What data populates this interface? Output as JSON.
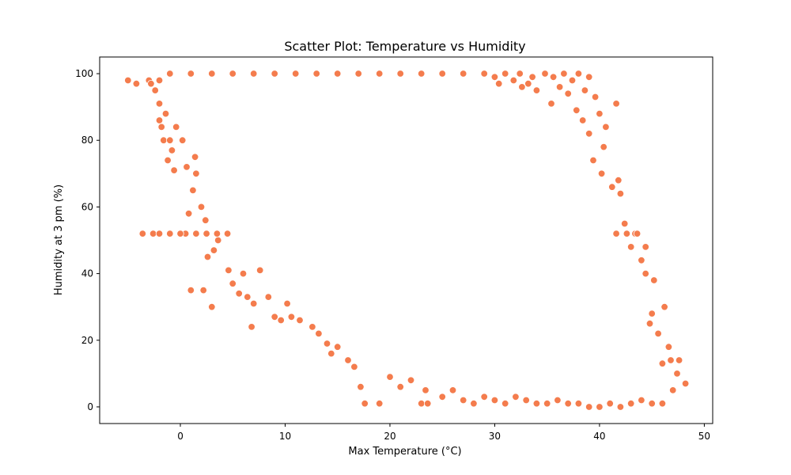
{
  "chart_data": {
    "type": "scatter",
    "title": "Scatter Plot: Temperature vs Humidity",
    "xlabel": "Max Temperature (°C)",
    "ylabel": "Humidity at 3 pm (%)",
    "xlim": [
      -7.7,
      50.8
    ],
    "ylim": [
      -5,
      105
    ],
    "xticks": [
      0,
      10,
      20,
      30,
      40,
      50
    ],
    "yticks": [
      0,
      20,
      40,
      60,
      80,
      100
    ],
    "xtick_labels": [
      "0",
      "10",
      "20",
      "30",
      "40",
      "50"
    ],
    "ytick_labels": [
      "0",
      "20",
      "40",
      "60",
      "80",
      "100"
    ],
    "grid": false,
    "legend": "none",
    "colors": {
      "marker": "#F47C4D",
      "marker_edge": "#ffffff"
    },
    "series": [
      {
        "points": [
          [
            -5.0,
            98
          ],
          [
            -4.2,
            97
          ],
          [
            -3.6,
            52
          ],
          [
            -3.0,
            98
          ],
          [
            -2.8,
            97
          ],
          [
            -2.4,
            95
          ],
          [
            -2.0,
            91
          ],
          [
            -2.0,
            86
          ],
          [
            -1.8,
            84
          ],
          [
            -1.6,
            80
          ],
          [
            -1.4,
            88
          ],
          [
            -1.2,
            74
          ],
          [
            -1.0,
            80
          ],
          [
            -0.8,
            77
          ],
          [
            -0.6,
            71
          ],
          [
            -0.4,
            84
          ],
          [
            0.2,
            80
          ],
          [
            0.6,
            72
          ],
          [
            0.8,
            58
          ],
          [
            1.0,
            35
          ],
          [
            1.2,
            65
          ],
          [
            1.4,
            75
          ],
          [
            1.5,
            70
          ],
          [
            2.0,
            60
          ],
          [
            2.2,
            35
          ],
          [
            2.4,
            56
          ],
          [
            2.6,
            45
          ],
          [
            3.0,
            30
          ],
          [
            3.2,
            47
          ],
          [
            3.6,
            50
          ],
          [
            4.6,
            41
          ],
          [
            5.0,
            37
          ],
          [
            5.6,
            34
          ],
          [
            6.0,
            40
          ],
          [
            6.4,
            33
          ],
          [
            6.8,
            24
          ],
          [
            7.0,
            31
          ],
          [
            7.6,
            41
          ],
          [
            8.4,
            33
          ],
          [
            9.0,
            27
          ],
          [
            9.6,
            26
          ],
          [
            10.2,
            31
          ],
          [
            10.6,
            27
          ],
          [
            11.4,
            26
          ],
          [
            12.6,
            24
          ],
          [
            13.2,
            22
          ],
          [
            14.0,
            19
          ],
          [
            14.4,
            16
          ],
          [
            15.0,
            18
          ],
          [
            16.0,
            14
          ],
          [
            16.6,
            12
          ],
          [
            17.2,
            6
          ],
          [
            17.6,
            1
          ],
          [
            19.0,
            1
          ],
          [
            20.0,
            9
          ],
          [
            21.0,
            6
          ],
          [
            22.0,
            8
          ],
          [
            23.0,
            1
          ],
          [
            23.4,
            5
          ],
          [
            23.6,
            1
          ],
          [
            25.0,
            3
          ],
          [
            26.0,
            5
          ],
          [
            27.0,
            2
          ],
          [
            28.0,
            1
          ],
          [
            29.0,
            3
          ],
          [
            30.0,
            2
          ],
          [
            31.0,
            1
          ],
          [
            32.0,
            3
          ],
          [
            33.0,
            2
          ],
          [
            34.0,
            1
          ],
          [
            35.0,
            1
          ],
          [
            36.0,
            2
          ],
          [
            37.0,
            1
          ],
          [
            38.0,
            1
          ],
          [
            39.0,
            0
          ],
          [
            40.0,
            0
          ],
          [
            41.0,
            1
          ],
          [
            42.0,
            0
          ],
          [
            43.0,
            1
          ],
          [
            44.0,
            2
          ],
          [
            45.0,
            1
          ],
          [
            46.0,
            1
          ],
          [
            47.0,
            5
          ],
          [
            48.2,
            7
          ],
          [
            47.4,
            10
          ],
          [
            46.8,
            14
          ],
          [
            46.6,
            18
          ],
          [
            46.2,
            30
          ],
          [
            45.2,
            38
          ],
          [
            44.4,
            40
          ],
          [
            44.4,
            48
          ],
          [
            43.4,
            52
          ],
          [
            42.4,
            55
          ],
          [
            42.0,
            64
          ],
          [
            41.8,
            68
          ],
          [
            41.2,
            66
          ],
          [
            41.6,
            91
          ],
          [
            40.6,
            84
          ],
          [
            40.0,
            88
          ],
          [
            39.6,
            93
          ],
          [
            39.0,
            99
          ],
          [
            38.6,
            95
          ],
          [
            38.0,
            100
          ],
          [
            37.4,
            98
          ],
          [
            36.6,
            100
          ],
          [
            35.6,
            99
          ],
          [
            34.8,
            100
          ],
          [
            33.6,
            99
          ],
          [
            32.4,
            100
          ],
          [
            31.0,
            100
          ],
          [
            30.0,
            99
          ],
          [
            29.0,
            100
          ],
          [
            27.0,
            100
          ],
          [
            25.0,
            100
          ],
          [
            23.0,
            100
          ],
          [
            21.0,
            100
          ],
          [
            19.0,
            100
          ],
          [
            17.0,
            100
          ],
          [
            15.0,
            100
          ],
          [
            13.0,
            100
          ],
          [
            11.0,
            100
          ],
          [
            9.0,
            100
          ],
          [
            7.0,
            100
          ],
          [
            5.0,
            100
          ],
          [
            3.0,
            100
          ],
          [
            1.0,
            100
          ],
          [
            -1.0,
            100
          ],
          [
            -2.0,
            98
          ],
          [
            0.5,
            52
          ],
          [
            1.5,
            52
          ],
          [
            2.5,
            52
          ],
          [
            3.5,
            52
          ],
          [
            4.5,
            52
          ],
          [
            -2.6,
            52
          ],
          [
            -2.0,
            52
          ],
          [
            -1.0,
            52
          ],
          [
            0.0,
            52
          ],
          [
            42.6,
            52
          ],
          [
            43.6,
            52
          ],
          [
            41.6,
            52
          ],
          [
            43.0,
            48
          ],
          [
            44.0,
            44
          ],
          [
            45.0,
            28
          ],
          [
            44.8,
            25
          ],
          [
            45.6,
            22
          ],
          [
            46.0,
            13
          ],
          [
            47.6,
            14
          ],
          [
            40.4,
            78
          ],
          [
            40.2,
            70
          ],
          [
            39.4,
            74
          ],
          [
            39.0,
            82
          ],
          [
            38.4,
            86
          ],
          [
            37.8,
            89
          ],
          [
            37.0,
            94
          ],
          [
            36.2,
            96
          ],
          [
            35.4,
            91
          ],
          [
            34.0,
            95
          ],
          [
            33.2,
            97
          ],
          [
            32.6,
            96
          ],
          [
            31.8,
            98
          ],
          [
            30.4,
            97
          ]
        ]
      }
    ]
  }
}
